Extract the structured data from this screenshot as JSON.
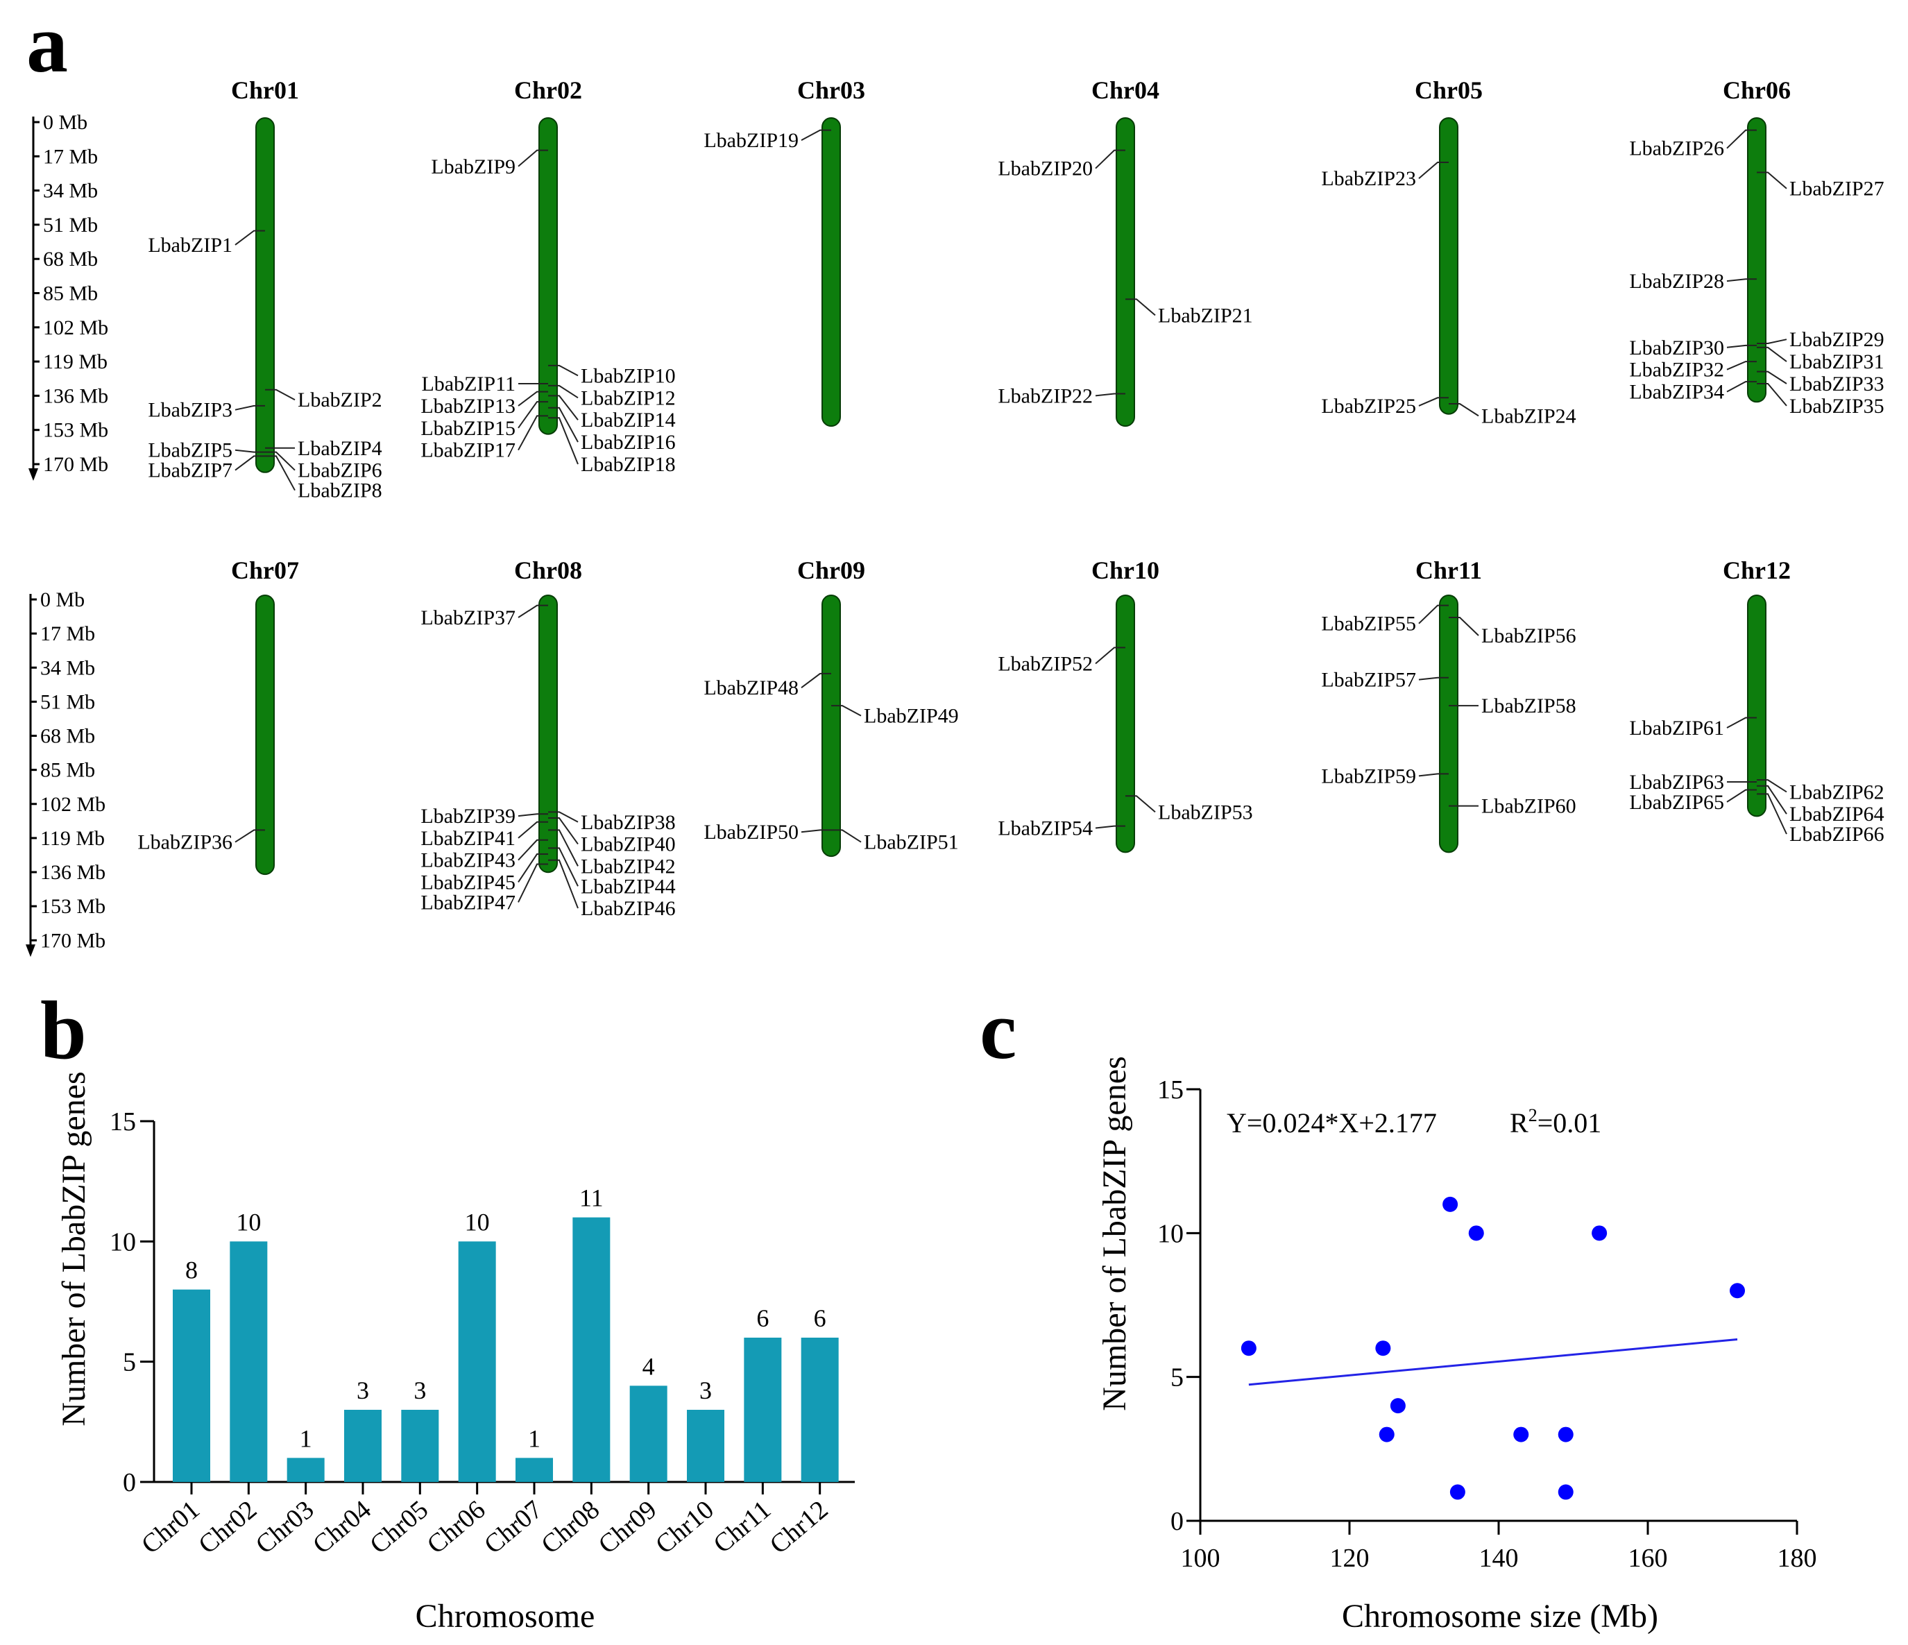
{
  "panels": {
    "a": "a",
    "b": "b",
    "c": "c"
  },
  "scale": {
    "ticks": [
      "0 Mb",
      "17 Mb",
      "34 Mb",
      "51 Mb",
      "68 Mb",
      "85 Mb",
      "102 Mb",
      "119 Mb",
      "136 Mb",
      "153 Mb",
      "170 Mb"
    ]
  },
  "colors": {
    "chromosome_fill": "#0d7d0d",
    "chromosome_stroke": "#063d06",
    "bar_fill": "#149bb5",
    "scatter_point": "#0000ff",
    "fit_line": "#2323e6",
    "axis": "#000000"
  },
  "chromosomes": [
    {
      "name": "Chr01",
      "size_mb": 172,
      "genes": [
        {
          "id": "LbabZIP1",
          "pos_mb": 54,
          "side": "L",
          "label_mb": 61
        },
        {
          "id": "LbabZIP2",
          "pos_mb": 133,
          "side": "R",
          "label_mb": 138
        },
        {
          "id": "LbabZIP3",
          "pos_mb": 141,
          "side": "L",
          "label_mb": 143
        },
        {
          "id": "LbabZIP4",
          "pos_mb": 162,
          "side": "R",
          "label_mb": 162
        },
        {
          "id": "LbabZIP5",
          "pos_mb": 164,
          "side": "L",
          "label_mb": 163
        },
        {
          "id": "LbabZIP6",
          "pos_mb": 164,
          "side": "R",
          "label_mb": 173
        },
        {
          "id": "LbabZIP7",
          "pos_mb": 166,
          "side": "L",
          "label_mb": 173
        },
        {
          "id": "LbabZIP8",
          "pos_mb": 166,
          "side": "R",
          "label_mb": 183
        }
      ]
    },
    {
      "name": "Chr02",
      "size_mb": 153,
      "genes": [
        {
          "id": "LbabZIP9",
          "pos_mb": 14,
          "side": "L",
          "label_mb": 22
        },
        {
          "id": "LbabZIP10",
          "pos_mb": 121,
          "side": "R",
          "label_mb": 126
        },
        {
          "id": "LbabZIP11",
          "pos_mb": 130,
          "side": "L",
          "label_mb": 130
        },
        {
          "id": "LbabZIP12",
          "pos_mb": 131,
          "side": "R",
          "label_mb": 137
        },
        {
          "id": "LbabZIP13",
          "pos_mb": 134,
          "side": "L",
          "label_mb": 141
        },
        {
          "id": "LbabZIP14",
          "pos_mb": 136,
          "side": "R",
          "label_mb": 148
        },
        {
          "id": "LbabZIP15",
          "pos_mb": 139,
          "side": "L",
          "label_mb": 152
        },
        {
          "id": "LbabZIP16",
          "pos_mb": 142,
          "side": "R",
          "label_mb": 159
        },
        {
          "id": "LbabZIP17",
          "pos_mb": 146,
          "side": "L",
          "label_mb": 163
        },
        {
          "id": "LbabZIP18",
          "pos_mb": 147,
          "side": "R",
          "label_mb": 170
        }
      ]
    },
    {
      "name": "Chr03",
      "size_mb": 149,
      "genes": [
        {
          "id": "LbabZIP19",
          "pos_mb": 4,
          "side": "L",
          "label_mb": 9
        }
      ]
    },
    {
      "name": "Chr04",
      "size_mb": 149,
      "genes": [
        {
          "id": "LbabZIP20",
          "pos_mb": 14,
          "side": "L",
          "label_mb": 23
        },
        {
          "id": "LbabZIP21",
          "pos_mb": 88,
          "side": "R",
          "label_mb": 96
        },
        {
          "id": "LbabZIP22",
          "pos_mb": 135,
          "side": "L",
          "label_mb": 136
        }
      ]
    },
    {
      "name": "Chr05",
      "size_mb": 143,
      "genes": [
        {
          "id": "LbabZIP23",
          "pos_mb": 20,
          "side": "L",
          "label_mb": 28
        },
        {
          "id": "LbabZIP25",
          "pos_mb": 137,
          "side": "L",
          "label_mb": 141
        },
        {
          "id": "LbabZIP24",
          "pos_mb": 140,
          "side": "R",
          "label_mb": 146
        }
      ]
    },
    {
      "name": "Chr06",
      "size_mb": 137,
      "genes": [
        {
          "id": "LbabZIP26",
          "pos_mb": 4,
          "side": "L",
          "label_mb": 13
        },
        {
          "id": "LbabZIP27",
          "pos_mb": 25,
          "side": "R",
          "label_mb": 33
        },
        {
          "id": "LbabZIP28",
          "pos_mb": 78,
          "side": "L",
          "label_mb": 79
        },
        {
          "id": "LbabZIP29",
          "pos_mb": 110,
          "side": "R",
          "label_mb": 108
        },
        {
          "id": "LbabZIP30",
          "pos_mb": 111,
          "side": "L",
          "label_mb": 112
        },
        {
          "id": "LbabZIP31",
          "pos_mb": 112,
          "side": "R",
          "label_mb": 119
        },
        {
          "id": "LbabZIP32",
          "pos_mb": 119,
          "side": "L",
          "label_mb": 123
        },
        {
          "id": "LbabZIP33",
          "pos_mb": 124,
          "side": "R",
          "label_mb": 130
        },
        {
          "id": "LbabZIP34",
          "pos_mb": 129,
          "side": "L",
          "label_mb": 134
        },
        {
          "id": "LbabZIP35",
          "pos_mb": 130,
          "side": "R",
          "label_mb": 141
        }
      ]
    },
    {
      "name": "Chr07",
      "size_mb": 135,
      "genes": [
        {
          "id": "LbabZIP36",
          "pos_mb": 115,
          "side": "L",
          "label_mb": 121
        }
      ]
    },
    {
      "name": "Chr08",
      "size_mb": 134,
      "genes": [
        {
          "id": "LbabZIP37",
          "pos_mb": 3,
          "side": "L",
          "label_mb": 9
        },
        {
          "id": "LbabZIP38",
          "pos_mb": 106,
          "side": "R",
          "label_mb": 111
        },
        {
          "id": "LbabZIP39",
          "pos_mb": 107,
          "side": "L",
          "label_mb": 108
        },
        {
          "id": "LbabZIP40",
          "pos_mb": 109,
          "side": "R",
          "label_mb": 122
        },
        {
          "id": "LbabZIP41",
          "pos_mb": 111,
          "side": "L",
          "label_mb": 119
        },
        {
          "id": "LbabZIP42",
          "pos_mb": 115,
          "side": "R",
          "label_mb": 133
        },
        {
          "id": "LbabZIP43",
          "pos_mb": 120,
          "side": "L",
          "label_mb": 130
        },
        {
          "id": "LbabZIP44",
          "pos_mb": 124,
          "side": "R",
          "label_mb": 143
        },
        {
          "id": "LbabZIP45",
          "pos_mb": 127,
          "side": "L",
          "label_mb": 141
        },
        {
          "id": "LbabZIP46",
          "pos_mb": 130,
          "side": "R",
          "label_mb": 154
        },
        {
          "id": "LbabZIP47",
          "pos_mb": 132,
          "side": "L",
          "label_mb": 151
        }
      ]
    },
    {
      "name": "Chr09",
      "size_mb": 126,
      "genes": [
        {
          "id": "LbabZIP48",
          "pos_mb": 37,
          "side": "L",
          "label_mb": 44
        },
        {
          "id": "LbabZIP49",
          "pos_mb": 53,
          "side": "R",
          "label_mb": 58
        },
        {
          "id": "LbabZIP50",
          "pos_mb": 115,
          "side": "L",
          "label_mb": 116
        },
        {
          "id": "LbabZIP51",
          "pos_mb": 115,
          "side": "R",
          "label_mb": 121
        }
      ]
    },
    {
      "name": "Chr10",
      "size_mb": 124,
      "genes": [
        {
          "id": "LbabZIP52",
          "pos_mb": 24,
          "side": "L",
          "label_mb": 32
        },
        {
          "id": "LbabZIP53",
          "pos_mb": 98,
          "side": "R",
          "label_mb": 106
        },
        {
          "id": "LbabZIP54",
          "pos_mb": 113,
          "side": "L",
          "label_mb": 114
        }
      ]
    },
    {
      "name": "Chr11",
      "size_mb": 124,
      "genes": [
        {
          "id": "LbabZIP55",
          "pos_mb": 3,
          "side": "L",
          "label_mb": 12
        },
        {
          "id": "LbabZIP56",
          "pos_mb": 9,
          "side": "R",
          "label_mb": 18
        },
        {
          "id": "LbabZIP57",
          "pos_mb": 39,
          "side": "L",
          "label_mb": 40
        },
        {
          "id": "LbabZIP58",
          "pos_mb": 53,
          "side": "R",
          "label_mb": 53
        },
        {
          "id": "LbabZIP59",
          "pos_mb": 87,
          "side": "L",
          "label_mb": 88
        },
        {
          "id": "LbabZIP60",
          "pos_mb": 103,
          "side": "R",
          "label_mb": 103
        }
      ]
    },
    {
      "name": "Chr12",
      "size_mb": 106,
      "genes": [
        {
          "id": "LbabZIP61",
          "pos_mb": 59,
          "side": "L",
          "label_mb": 64
        },
        {
          "id": "LbabZIP62",
          "pos_mb": 90,
          "side": "R",
          "label_mb": 96
        },
        {
          "id": "LbabZIP63",
          "pos_mb": 91,
          "side": "L",
          "label_mb": 91
        },
        {
          "id": "LbabZIP64",
          "pos_mb": 93,
          "side": "R",
          "label_mb": 107
        },
        {
          "id": "LbabZIP65",
          "pos_mb": 95,
          "side": "L",
          "label_mb": 101
        },
        {
          "id": "LbabZIP66",
          "pos_mb": 97,
          "side": "R",
          "label_mb": 117
        }
      ]
    }
  ],
  "chart_data": [
    {
      "type": "bar",
      "categories": [
        "Chr01",
        "Chr02",
        "Chr03",
        "Chr04",
        "Chr05",
        "Chr06",
        "Chr07",
        "Chr08",
        "Chr09",
        "Chr10",
        "Chr11",
        "Chr12"
      ],
      "values": [
        8,
        10,
        1,
        3,
        3,
        10,
        1,
        11,
        4,
        3,
        6,
        6
      ],
      "title": "",
      "xlabel": "Chromosome",
      "ylabel": "Number of LbabZIP genes",
      "ylim": [
        0,
        15
      ],
      "yticks": [
        0,
        5,
        10,
        15
      ],
      "grid": false
    },
    {
      "type": "scatter",
      "points": [
        {
          "x": 172,
          "y": 8
        },
        {
          "x": 153.5,
          "y": 10
        },
        {
          "x": 149,
          "y": 1
        },
        {
          "x": 149,
          "y": 3
        },
        {
          "x": 143,
          "y": 3
        },
        {
          "x": 137,
          "y": 10
        },
        {
          "x": 134.5,
          "y": 1
        },
        {
          "x": 133.5,
          "y": 11
        },
        {
          "x": 126.5,
          "y": 4
        },
        {
          "x": 124.5,
          "y": 6
        },
        {
          "x": 125,
          "y": 3
        },
        {
          "x": 106.5,
          "y": 6
        }
      ],
      "fit_line": {
        "slope": 0.024,
        "intercept": 2.177,
        "x_range": [
          106.5,
          172
        ]
      },
      "equation": "Y=0.024*X+2.177",
      "r2_prefix": "R",
      "r2_sup": "2",
      "r2_value": "=0.01",
      "xlabel": "Chromosome size (Mb)",
      "ylabel": "Number of LbabZIP genes",
      "xlim": [
        100,
        180
      ],
      "ylim": [
        0,
        15
      ],
      "xticks": [
        100,
        120,
        140,
        160,
        180
      ],
      "yticks": [
        0,
        5,
        10,
        15
      ],
      "grid": false
    }
  ]
}
